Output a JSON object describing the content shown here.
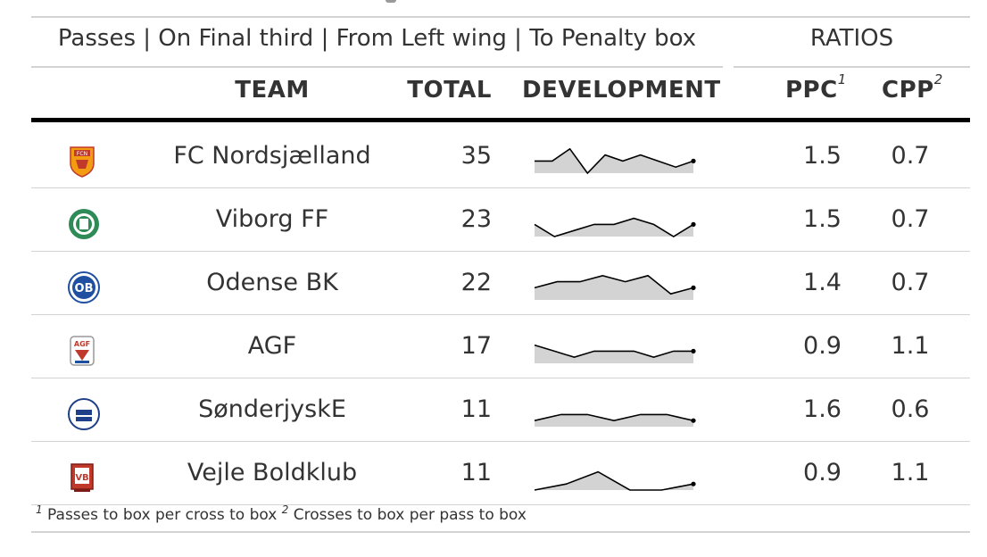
{
  "header": {
    "spanner_left": "Passes | On Final third | From Left wing | To Penalty box",
    "spanner_right": "RATIOS"
  },
  "columns": {
    "team": "TEAM",
    "total": "TOTAL",
    "development": "DEVELOPMENT",
    "ppc": "PPC",
    "ppc_note": "1",
    "cpp": "CPP",
    "cpp_note": "2"
  },
  "rows": [
    {
      "logo": "fc-nordsjaelland-logo",
      "team": "FC Nordsjælland",
      "total": "35",
      "ppc": "1.5",
      "cpp": "0.7",
      "development": [
        2,
        2,
        4,
        0,
        3,
        2,
        3,
        2,
        1,
        2
      ]
    },
    {
      "logo": "viborg-ff-logo",
      "team": "Viborg FF",
      "total": "23",
      "ppc": "1.5",
      "cpp": "0.7",
      "development": [
        2,
        0,
        1,
        2,
        2,
        3,
        2,
        0,
        2
      ]
    },
    {
      "logo": "odense-bk-logo",
      "team": "Odense BK",
      "total": "22",
      "ppc": "1.4",
      "cpp": "0.7",
      "development": [
        2,
        3,
        3,
        4,
        3,
        4,
        1,
        2
      ]
    },
    {
      "logo": "agf-logo",
      "team": "AGF",
      "total": "17",
      "ppc": "0.9",
      "cpp": "1.1",
      "development": [
        3,
        2,
        1,
        2,
        2,
        2,
        1,
        2,
        2
      ]
    },
    {
      "logo": "sonderjyske-logo",
      "team": "SønderjyskE",
      "total": "11",
      "ppc": "1.6",
      "cpp": "0.6",
      "development": [
        1,
        2,
        2,
        1,
        2,
        2,
        1
      ]
    },
    {
      "logo": "vejle-boldklub-logo",
      "team": "Vejle Boldklub",
      "total": "11",
      "ppc": "0.9",
      "cpp": "1.1",
      "development": [
        0,
        1,
        3,
        0,
        0,
        1
      ]
    }
  ],
  "footnotes": {
    "mark1": "1",
    "text1": "Passes to box per cross to box",
    "mark2": "2",
    "text2": "Crosses to box per pass to box"
  },
  "colors": {
    "spark_fill": "#d3d3d3",
    "spark_line": "#000000",
    "rule": "#d3d3d3"
  }
}
